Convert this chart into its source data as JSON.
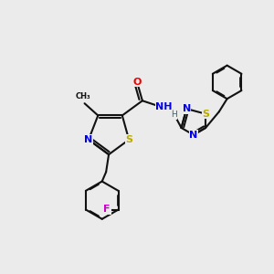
{
  "bg_color": "#ebebeb",
  "bond_color": "#111111",
  "bond_width": 1.5,
  "atom_colors": {
    "C": "#111111",
    "N": "#0000ee",
    "S": "#bbaa00",
    "O": "#ee0000",
    "F": "#cc00cc",
    "H": "#444444"
  },
  "font_size": 8.0,
  "fig_bg": "#ebebeb"
}
